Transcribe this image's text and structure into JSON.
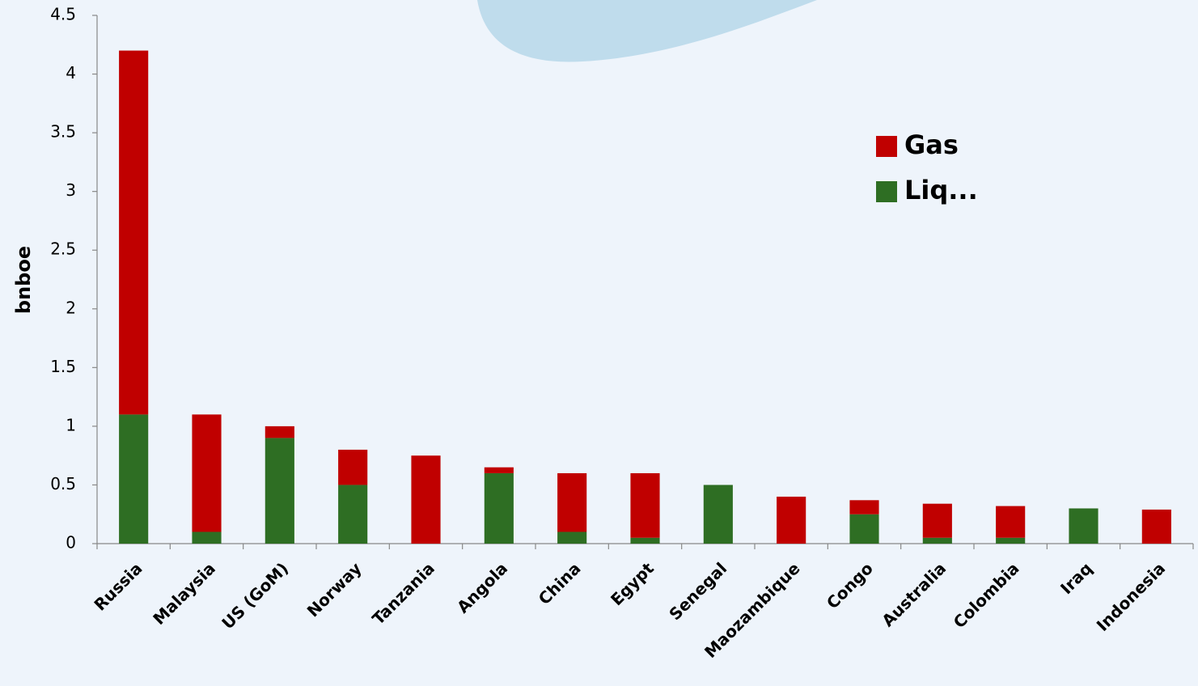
{
  "chart_data": {
    "type": "stacked_bar",
    "y_label": "bnboe",
    "categories": [
      "Russia",
      "Malaysia",
      "US (GoM)",
      "Norway",
      "Tanzania",
      "Angola",
      "China",
      "Egypt",
      "Senegal",
      "Maozambique",
      "Congo",
      "Australia",
      "Colombia",
      "Iraq",
      "Indonesia"
    ],
    "series": [
      {
        "name": "Liq...",
        "color": "#2e6e23",
        "values": [
          1.1,
          0.1,
          0.9,
          0.5,
          0,
          0.6,
          0.1,
          0.05,
          0.5,
          0,
          0.25,
          0.05,
          0.05,
          0.3,
          0
        ]
      },
      {
        "name": "Gas",
        "color": "#c00000",
        "values": [
          3.1,
          1.0,
          0.1,
          0.3,
          0.75,
          0.05,
          0.5,
          0.55,
          0,
          0.4,
          0.12,
          0.29,
          0.27,
          0,
          0.29
        ]
      }
    ],
    "ylim": [
      0,
      4.5
    ],
    "yticks": [
      0,
      0.5,
      1,
      1.5,
      2,
      2.5,
      3,
      3.5,
      4,
      4.5
    ]
  }
}
